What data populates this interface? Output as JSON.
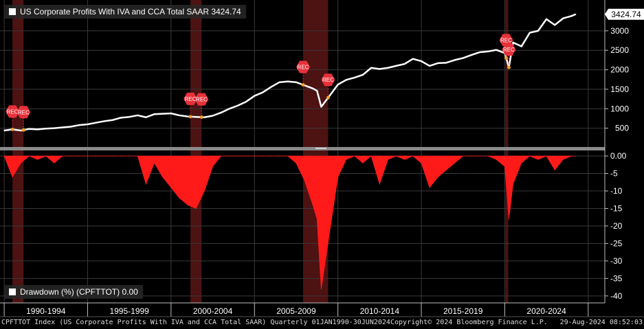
{
  "chart_data": [
    {
      "type": "line",
      "title": "US Corporate Profits With IVA and CCA Total SAAR",
      "last_value": "3424.74",
      "ylim": [
        0,
        3650
      ],
      "yticks": [
        500,
        1000,
        1500,
        2000,
        2500,
        3000
      ],
      "x": [
        "1990-01",
        "1990-07",
        "1991-01",
        "1991-07",
        "1992-01",
        "1992-07",
        "1993-01",
        "1993-07",
        "1994-01",
        "1994-07",
        "1995-01",
        "1995-07",
        "1996-01",
        "1996-07",
        "1997-01",
        "1997-07",
        "1998-01",
        "1998-07",
        "1999-01",
        "1999-07",
        "2000-01",
        "2000-07",
        "2001-01",
        "2001-07",
        "2002-01",
        "2002-07",
        "2003-01",
        "2003-07",
        "2004-01",
        "2004-07",
        "2005-01",
        "2005-07",
        "2006-01",
        "2006-07",
        "2007-01",
        "2007-07",
        "2008-01",
        "2008-07",
        "2008-10",
        "2009-01",
        "2009-07",
        "2010-01",
        "2010-07",
        "2011-01",
        "2011-07",
        "2012-01",
        "2012-07",
        "2013-01",
        "2013-07",
        "2014-01",
        "2014-07",
        "2015-01",
        "2015-07",
        "2016-01",
        "2016-07",
        "2017-01",
        "2017-07",
        "2018-01",
        "2018-07",
        "2019-01",
        "2019-07",
        "2020-01",
        "2020-04",
        "2020-07",
        "2021-01",
        "2021-07",
        "2022-01",
        "2022-07",
        "2023-01",
        "2023-07",
        "2024-01",
        "2024-04"
      ],
      "values": [
        440,
        470,
        440,
        480,
        470,
        490,
        500,
        520,
        540,
        580,
        600,
        640,
        680,
        710,
        770,
        790,
        830,
        780,
        860,
        870,
        880,
        830,
        800,
        790,
        780,
        820,
        900,
        1000,
        1080,
        1180,
        1330,
        1420,
        1560,
        1680,
        1700,
        1680,
        1600,
        1520,
        1460,
        1050,
        1330,
        1620,
        1740,
        1800,
        1870,
        2050,
        2020,
        2050,
        2100,
        2150,
        2280,
        2220,
        2100,
        2170,
        2180,
        2250,
        2300,
        2380,
        2450,
        2470,
        2510,
        2430,
        2060,
        2700,
        2600,
        2950,
        3000,
        3300,
        3150,
        3320,
        3380,
        3424.74
      ]
    },
    {
      "type": "area",
      "title": "Drawdown (%) (CPFTTOT)",
      "last_value": "0.00",
      "ylim": [
        -42,
        1
      ],
      "yticks": [
        0,
        -5,
        -10,
        -15,
        -20,
        -25,
        -30,
        -35,
        -40
      ],
      "ytick_labels": [
        "0.00",
        "-5",
        "-10",
        "-15",
        "-20",
        "-25",
        "-30",
        "-35",
        "-40"
      ],
      "x": [
        "1990-01",
        "1990-07",
        "1991-01",
        "1991-07",
        "1992-01",
        "1992-07",
        "1993-01",
        "1993-07",
        "1994-01",
        "1994-07",
        "1995-01",
        "1995-07",
        "1996-01",
        "1996-07",
        "1997-01",
        "1997-07",
        "1998-01",
        "1998-07",
        "1999-01",
        "1999-07",
        "2000-01",
        "2000-07",
        "2001-01",
        "2001-07",
        "2002-01",
        "2002-07",
        "2003-01",
        "2003-07",
        "2004-01",
        "2004-07",
        "2005-01",
        "2005-07",
        "2006-01",
        "2006-07",
        "2007-01",
        "2007-07",
        "2008-01",
        "2008-07",
        "2008-10",
        "2009-01",
        "2009-07",
        "2010-01",
        "2010-07",
        "2011-01",
        "2011-07",
        "2012-01",
        "2012-07",
        "2013-01",
        "2013-07",
        "2014-01",
        "2014-07",
        "2015-01",
        "2015-07",
        "2016-01",
        "2016-07",
        "2017-01",
        "2017-07",
        "2018-01",
        "2018-07",
        "2019-01",
        "2019-07",
        "2020-01",
        "2020-04",
        "2020-07",
        "2021-01",
        "2021-07",
        "2022-01",
        "2022-07",
        "2023-01",
        "2023-07",
        "2024-01",
        "2024-04"
      ],
      "values": [
        0,
        -6,
        -2,
        0,
        -1,
        0,
        -2,
        0,
        0,
        0,
        0,
        0,
        0,
        0,
        0,
        0,
        0,
        -8,
        -2,
        -6,
        -9,
        -12,
        -14,
        -15,
        -10,
        -3,
        0,
        0,
        0,
        0,
        0,
        0,
        0,
        0,
        0,
        -2,
        -7,
        -14,
        -18,
        -38,
        -22,
        -6,
        -1,
        0,
        -2,
        0,
        -8,
        -1,
        0,
        -1,
        0,
        -2,
        -9,
        -6,
        -4,
        -2,
        0,
        0,
        0,
        0,
        -1,
        -3,
        -18,
        -8,
        -2,
        0,
        -1,
        0,
        -4,
        -1,
        0,
        0
      ]
    }
  ],
  "legend_top": "US Corporate Profits With IVA and CCA Total SAAR  3424.74",
  "legend_bottom": "Drawdown (%) (CPFTTOT) 0.00",
  "recession_label": "REC",
  "recessions": [
    {
      "start": "1990-07",
      "end": "1991-03"
    },
    {
      "start": "2001-03",
      "end": "2001-11"
    },
    {
      "start": "2007-12",
      "end": "2009-06"
    },
    {
      "start": "2020-02",
      "end": "2020-04"
    }
  ],
  "x_axis": {
    "range": [
      "1989-10-01",
      "2025-12-31"
    ],
    "bands": [
      {
        "label": "1990-1994",
        "start": "1990-01-01",
        "end": "1995-01-01"
      },
      {
        "label": "1995-1999",
        "start": "1995-01-01",
        "end": "2000-01-01"
      },
      {
        "label": "2000-2004",
        "start": "2000-01-01",
        "end": "2005-01-01"
      },
      {
        "label": "2005-2009",
        "start": "2005-01-01",
        "end": "2010-01-01"
      },
      {
        "label": "2010-2014",
        "start": "2010-01-01",
        "end": "2015-01-01"
      },
      {
        "label": "2015-2019",
        "start": "2015-01-01",
        "end": "2020-01-01"
      },
      {
        "label": "2020-2024",
        "start": "2020-01-01",
        "end": "2025-01-01"
      }
    ]
  },
  "footer": {
    "left": "CPFTTOT Index (US Corporate Profits With IVA and CCA Total SAAR)  Quarterly 01JAN1990-30JUN2024",
    "center": "Copyright© 2024 Bloomberg Finance L.P.",
    "right": "29-Aug-2024 08:52:03"
  },
  "colors": {
    "line": "#ffffff",
    "drawdown_fill": "#ff1a1a",
    "recession_band": "#5a1515",
    "grid": "#3a3a3a",
    "rec_marker": "#e8313a",
    "value_label_bg": "#ffffff"
  }
}
